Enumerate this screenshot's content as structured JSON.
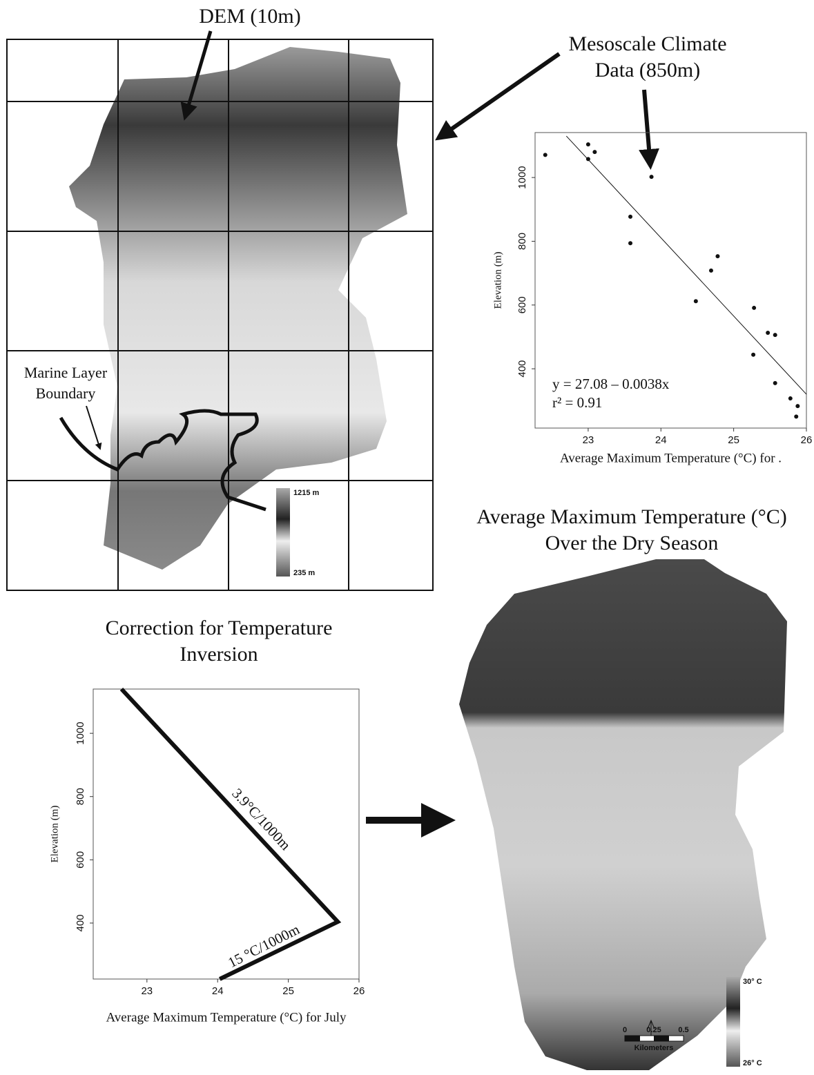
{
  "dem_map": {
    "title": "DEM (10m)",
    "legend": {
      "top": "1215 m",
      "bottom": "235 m"
    },
    "boundary_label": [
      "Marine Layer",
      "Boundary"
    ]
  },
  "climate_data_label": [
    "Mesoscale Climate",
    "Data (850m)"
  ],
  "correction_title": [
    "Correction for Temperature",
    "Inversion"
  ],
  "temperature_map": {
    "title": [
      "Average Maximum Temperature (°C)",
      "Over the Dry Season"
    ],
    "legend": {
      "top": "30° C",
      "bottom": "26° C"
    },
    "scale_bar": {
      "ticks": [
        "0",
        "0.25",
        "0.5"
      ],
      "unit": "Kilometers"
    }
  },
  "chart_data": [
    {
      "type": "scatter",
      "x": [
        22.41,
        23.0,
        23.0,
        23.09,
        23.87,
        23.58,
        23.58,
        24.78,
        24.69,
        24.48,
        25.28,
        25.47,
        25.57,
        25.27,
        25.57,
        25.78,
        25.88,
        25.86
      ],
      "y": [
        1071,
        1104,
        1058,
        1080,
        1002,
        877,
        794,
        753,
        708,
        612,
        591,
        513,
        506,
        444,
        355,
        307,
        283,
        250
      ],
      "fit_line": {
        "x": [
          22.7,
          26.0
        ],
        "y": [
          1130,
          320
        ]
      },
      "xlim": [
        22.27,
        26.0
      ],
      "ylim": [
        214,
        1141
      ],
      "xticks": [
        23,
        24,
        25,
        26
      ],
      "yticks": [
        400,
        600,
        800,
        1000
      ],
      "x_label": "Average Maximum Temperature (°C) for .",
      "y_label": "Elevation (m)",
      "annotations": [
        "y = 27.08 – 0.0038x",
        "r² = 0.91"
      ]
    },
    {
      "type": "line",
      "x": [
        22.64,
        25.7,
        24.03
      ],
      "y": [
        1140,
        404,
        223
      ],
      "xlim": [
        22.24,
        26.0
      ],
      "ylim": [
        223,
        1140
      ],
      "xticks": [
        23,
        24,
        25,
        26
      ],
      "yticks": [
        400,
        600,
        800,
        1000
      ],
      "x_label": "Average Maximum Temperature (°C) for July",
      "y_label": "Elevation (m)",
      "annotations": [
        "3.9°C/1000m",
        "15 °C/1000m"
      ]
    }
  ]
}
